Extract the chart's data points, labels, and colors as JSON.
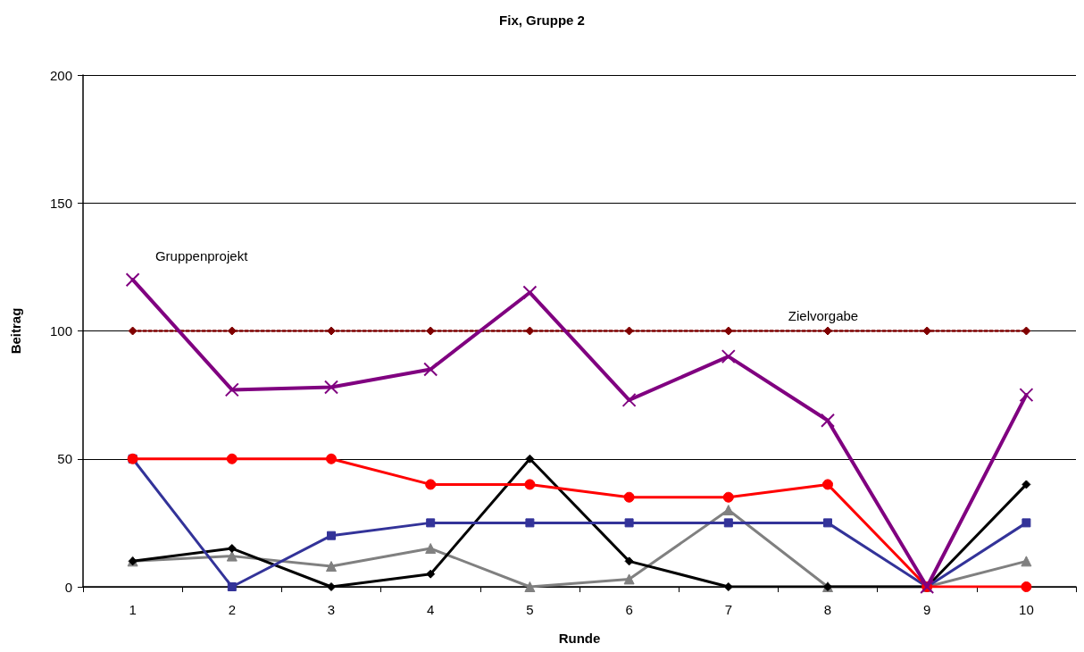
{
  "chart_data": {
    "type": "line",
    "title": "Fix, Gruppe 2",
    "xlabel": "Runde",
    "ylabel": "Beitrag",
    "categories": [
      "1",
      "2",
      "3",
      "4",
      "5",
      "6",
      "7",
      "8",
      "9",
      "10"
    ],
    "ylim": [
      0,
      200
    ],
    "yticks": [
      0,
      50,
      100,
      150,
      200
    ],
    "grid": "y",
    "legend": false,
    "line_style": "solid",
    "series": [
      {
        "name": "Gruppenprojekt",
        "color": "#800080",
        "marker": "cross",
        "values": [
          120,
          77,
          78,
          85,
          115,
          73,
          90,
          65,
          0,
          75
        ]
      },
      {
        "name": "Zielvorgabe",
        "color": "#800000",
        "marker": "diamond",
        "line_style": "dotted",
        "values": [
          100,
          100,
          100,
          100,
          100,
          100,
          100,
          100,
          100,
          100
        ]
      },
      {
        "color": "#ff0000",
        "marker": "circle",
        "values": [
          50,
          50,
          50,
          40,
          40,
          35,
          35,
          40,
          0,
          0
        ]
      },
      {
        "color": "#333399",
        "marker": "square",
        "values": [
          50,
          0,
          20,
          25,
          25,
          25,
          25,
          25,
          0,
          25
        ]
      },
      {
        "color": "#000000",
        "marker": "diamond",
        "values": [
          10,
          15,
          0,
          5,
          50,
          10,
          0,
          0,
          0,
          40
        ]
      },
      {
        "color": "#808080",
        "marker": "triangle",
        "values": [
          10,
          12,
          8,
          15,
          0,
          3,
          30,
          0,
          0,
          10
        ]
      }
    ]
  }
}
